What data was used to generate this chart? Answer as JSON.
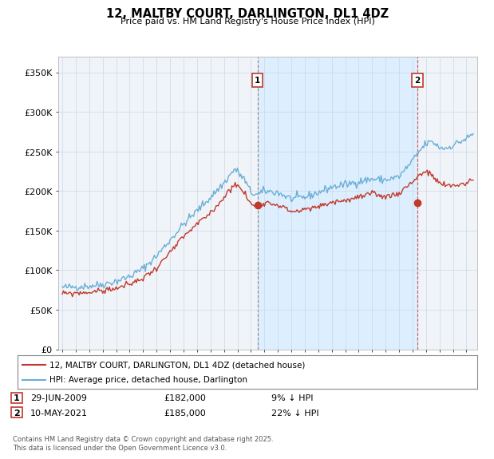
{
  "title": "12, MALTBY COURT, DARLINGTON, DL1 4DZ",
  "subtitle": "Price paid vs. HM Land Registry's House Price Index (HPI)",
  "ylabel_ticks": [
    "£0",
    "£50K",
    "£100K",
    "£150K",
    "£200K",
    "£250K",
    "£300K",
    "£350K"
  ],
  "ytick_values": [
    0,
    50000,
    100000,
    150000,
    200000,
    250000,
    300000,
    350000
  ],
  "ylim": [
    0,
    370000
  ],
  "xlim_start": 1994.7,
  "xlim_end": 2025.8,
  "hpi_color": "#6baed6",
  "price_color": "#c0392b",
  "shade_color": "#ddeeff",
  "background_color": "#f0f4f8",
  "legend_label_price": "12, MALTBY COURT, DARLINGTON, DL1 4DZ (detached house)",
  "legend_label_hpi": "HPI: Average price, detached house, Darlington",
  "point1_label": "1",
  "point1_date": "29-JUN-2009",
  "point1_price": "£182,000",
  "point1_hpi": "9% ↓ HPI",
  "point1_x": 2009.49,
  "point1_y": 182000,
  "point2_label": "2",
  "point2_date": "10-MAY-2021",
  "point2_price": "£185,000",
  "point2_hpi": "22% ↓ HPI",
  "point2_x": 2021.36,
  "point2_y": 185000,
  "footer": "Contains HM Land Registry data © Crown copyright and database right 2025.\nThis data is licensed under the Open Government Licence v3.0.",
  "grid_color": "#c8d8e8",
  "hpi_anchors_x": [
    1995.0,
    1996.0,
    1997.0,
    1998.0,
    1999.0,
    2000.0,
    2001.0,
    2002.0,
    2003.0,
    2004.0,
    2005.0,
    2006.0,
    2007.0,
    2007.8,
    2008.5,
    2009.0,
    2009.5,
    2010.0,
    2011.0,
    2012.0,
    2013.0,
    2014.0,
    2015.0,
    2016.0,
    2017.0,
    2018.0,
    2019.0,
    2020.0,
    2020.5,
    2021.0,
    2021.5,
    2022.0,
    2022.5,
    2023.0,
    2023.5,
    2024.0,
    2024.5,
    2025.0,
    2025.5
  ],
  "hpi_anchors_y": [
    78000,
    79000,
    80000,
    82000,
    86000,
    92000,
    102000,
    118000,
    138000,
    158000,
    175000,
    192000,
    210000,
    228000,
    215000,
    198000,
    195000,
    200000,
    198000,
    190000,
    192000,
    198000,
    205000,
    208000,
    212000,
    215000,
    214000,
    218000,
    228000,
    238000,
    250000,
    260000,
    262000,
    255000,
    254000,
    258000,
    262000,
    266000,
    272000
  ],
  "price_anchors_x": [
    1995.0,
    1996.0,
    1997.0,
    1998.0,
    1999.0,
    2000.0,
    2001.0,
    2002.0,
    2003.0,
    2004.0,
    2005.0,
    2006.0,
    2007.0,
    2007.8,
    2008.5,
    2009.0,
    2009.5,
    2010.0,
    2011.0,
    2012.0,
    2013.0,
    2014.0,
    2015.0,
    2016.0,
    2017.0,
    2018.0,
    2019.0,
    2020.0,
    2020.5,
    2021.0,
    2021.5,
    2022.0,
    2022.5,
    2023.0,
    2023.5,
    2024.0,
    2024.5,
    2025.0,
    2025.5
  ],
  "price_anchors_y": [
    70000,
    71000,
    72000,
    74000,
    77000,
    82000,
    90000,
    103000,
    122000,
    142000,
    158000,
    172000,
    192000,
    210000,
    198000,
    183000,
    182000,
    186000,
    183000,
    174000,
    176000,
    180000,
    186000,
    188000,
    192000,
    196000,
    193000,
    197000,
    205000,
    212000,
    220000,
    225000,
    218000,
    210000,
    206000,
    207000,
    208000,
    210000,
    215000
  ]
}
